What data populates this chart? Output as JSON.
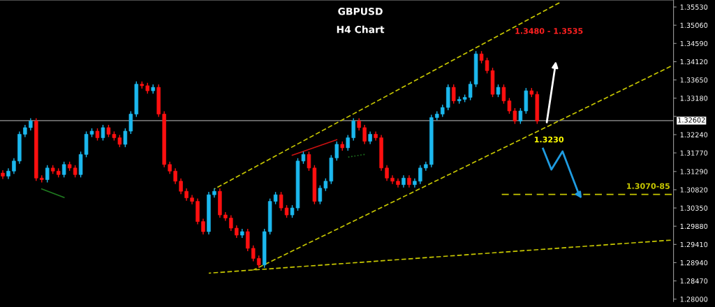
{
  "chart_data": {
    "type": "candlestick",
    "title": "GBPUSD",
    "subtitle": "H4 Chart",
    "categories": [
      null,
      null,
      null,
      null,
      null,
      null,
      null,
      null,
      null,
      null,
      null,
      null,
      null,
      null,
      null,
      null,
      null,
      null,
      null,
      null,
      null,
      null,
      null,
      null,
      null,
      null,
      null,
      null,
      null,
      null,
      null,
      null,
      null,
      null,
      null,
      null,
      null,
      null,
      null,
      null,
      null,
      null,
      null,
      null,
      null,
      null,
      null,
      null,
      null,
      null,
      null,
      null,
      null,
      null,
      null,
      null,
      null,
      null,
      null,
      null,
      null,
      null,
      null,
      null,
      null,
      null,
      null,
      null,
      null,
      null,
      null,
      null,
      null,
      null,
      null,
      null,
      null,
      null,
      null,
      null,
      null,
      null,
      null,
      null,
      null,
      null,
      null,
      null,
      null,
      null,
      null,
      null,
      null,
      null,
      null,
      null,
      null,
      null,
      null,
      null,
      null,
      null,
      null,
      null,
      null,
      null,
      null,
      null,
      null,
      null,
      null,
      null,
      null,
      null,
      null,
      null,
      null,
      null,
      null,
      null,
      null
    ],
    "ohlc": [
      [
        1.3125,
        1.3131,
        1.3111,
        1.3117
      ],
      [
        1.3117,
        1.3136,
        1.3111,
        1.313
      ],
      [
        1.313,
        1.3162,
        1.3124,
        1.3156
      ],
      [
        1.3156,
        1.3231,
        1.315,
        1.3225
      ],
      [
        1.3225,
        1.3248,
        1.3219,
        1.3242
      ],
      [
        1.3242,
        1.3265,
        1.3236,
        1.3259
      ],
      [
        1.3259,
        1.3265,
        1.3106,
        1.3112
      ],
      [
        1.3112,
        1.3118,
        1.3102,
        1.3108
      ],
      [
        1.3108,
        1.3144,
        1.3102,
        1.3138
      ],
      [
        1.3138,
        1.3144,
        1.3124,
        1.313
      ],
      [
        1.313,
        1.3136,
        1.3115,
        1.3121
      ],
      [
        1.3121,
        1.3153,
        1.3115,
        1.3147
      ],
      [
        1.3147,
        1.3153,
        1.3132,
        1.3138
      ],
      [
        1.3138,
        1.3144,
        1.3115,
        1.3121
      ],
      [
        1.3121,
        1.3179,
        1.3115,
        1.3173
      ],
      [
        1.3173,
        1.3231,
        1.3167,
        1.3225
      ],
      [
        1.3225,
        1.3239,
        1.3219,
        1.3233
      ],
      [
        1.3233,
        1.3239,
        1.321,
        1.3216
      ],
      [
        1.3216,
        1.3248,
        1.321,
        1.3242
      ],
      [
        1.3242,
        1.3248,
        1.3219,
        1.3225
      ],
      [
        1.3225,
        1.3231,
        1.321,
        1.3216
      ],
      [
        1.3216,
        1.3222,
        1.3193,
        1.3199
      ],
      [
        1.3199,
        1.3239,
        1.3193,
        1.3233
      ],
      [
        1.3233,
        1.3283,
        1.3227,
        1.3277
      ],
      [
        1.3277,
        1.336,
        1.3271,
        1.3354
      ],
      [
        1.3354,
        1.336,
        1.3344,
        1.335
      ],
      [
        1.335,
        1.3356,
        1.3331,
        1.3337
      ],
      [
        1.3337,
        1.3352,
        1.3331,
        1.3346
      ],
      [
        1.3346,
        1.3352,
        1.3271,
        1.3277
      ],
      [
        1.3277,
        1.3283,
        1.3141,
        1.3147
      ],
      [
        1.3147,
        1.3153,
        1.3124,
        1.313
      ],
      [
        1.313,
        1.3136,
        1.3098,
        1.3104
      ],
      [
        1.3104,
        1.311,
        1.3072,
        1.3078
      ],
      [
        1.3078,
        1.3084,
        1.3055,
        1.3061
      ],
      [
        1.3061,
        1.3067,
        1.3046,
        1.3052
      ],
      [
        1.3052,
        1.3058,
        1.2994,
        1.3
      ],
      [
        1.3,
        1.3006,
        1.2968,
        1.2974
      ],
      [
        1.2974,
        1.3075,
        1.2968,
        1.3069
      ],
      [
        1.3069,
        1.3084,
        1.3063,
        1.3078
      ],
      [
        1.3078,
        1.3084,
        1.3011,
        1.3017
      ],
      [
        1.3017,
        1.3023,
        1.3003,
        1.3009
      ],
      [
        1.3009,
        1.3015,
        1.2977,
        1.2983
      ],
      [
        1.2983,
        1.2989,
        1.2959,
        1.2965
      ],
      [
        1.2965,
        1.298,
        1.2959,
        1.2974
      ],
      [
        1.2974,
        1.298,
        1.2925,
        1.2931
      ],
      [
        1.2931,
        1.2937,
        1.2899,
        1.2905
      ],
      [
        1.2905,
        1.2911,
        1.2882,
        1.2888
      ],
      [
        1.2888,
        1.298,
        1.2882,
        1.2974
      ],
      [
        1.2974,
        1.3058,
        1.2968,
        1.3052
      ],
      [
        1.3052,
        1.3075,
        1.3046,
        1.3069
      ],
      [
        1.3069,
        1.3075,
        1.3029,
        1.3035
      ],
      [
        1.3035,
        1.3041,
        1.3011,
        1.3017
      ],
      [
        1.3017,
        1.3041,
        1.3011,
        1.3035
      ],
      [
        1.3035,
        1.3162,
        1.3029,
        1.3156
      ],
      [
        1.3156,
        1.3179,
        1.315,
        1.3173
      ],
      [
        1.3173,
        1.3179,
        1.3132,
        1.3138
      ],
      [
        1.3138,
        1.3144,
        1.3046,
        1.3052
      ],
      [
        1.3052,
        1.3092,
        1.3046,
        1.3086
      ],
      [
        1.3086,
        1.311,
        1.308,
        1.3104
      ],
      [
        1.3104,
        1.317,
        1.3098,
        1.3164
      ],
      [
        1.3164,
        1.3205,
        1.3158,
        1.3199
      ],
      [
        1.3199,
        1.3205,
        1.3184,
        1.319
      ],
      [
        1.319,
        1.3222,
        1.3184,
        1.3216
      ],
      [
        1.3216,
        1.3265,
        1.321,
        1.3259
      ],
      [
        1.3259,
        1.3265,
        1.3236,
        1.3242
      ],
      [
        1.3242,
        1.3248,
        1.3201,
        1.3207
      ],
      [
        1.3207,
        1.3231,
        1.3201,
        1.3225
      ],
      [
        1.3225,
        1.3231,
        1.321,
        1.3216
      ],
      [
        1.3216,
        1.3222,
        1.3132,
        1.3138
      ],
      [
        1.3138,
        1.3144,
        1.3106,
        1.3112
      ],
      [
        1.3112,
        1.3118,
        1.3098,
        1.3104
      ],
      [
        1.3104,
        1.311,
        1.3089,
        1.3095
      ],
      [
        1.3095,
        1.3118,
        1.3089,
        1.3112
      ],
      [
        1.3112,
        1.3118,
        1.3089,
        1.3095
      ],
      [
        1.3095,
        1.311,
        1.3089,
        1.3104
      ],
      [
        1.3104,
        1.3144,
        1.3098,
        1.3138
      ],
      [
        1.3138,
        1.3153,
        1.3132,
        1.3147
      ],
      [
        1.3147,
        1.3274,
        1.3141,
        1.3268
      ],
      [
        1.3268,
        1.3283,
        1.3262,
        1.3277
      ],
      [
        1.3277,
        1.33,
        1.3271,
        1.3294
      ],
      [
        1.3294,
        1.3352,
        1.3288,
        1.3346
      ],
      [
        1.3346,
        1.3352,
        1.3305,
        1.3311
      ],
      [
        1.3311,
        1.3321,
        1.3305,
        1.3315
      ],
      [
        1.3315,
        1.3326,
        1.3309,
        1.332
      ],
      [
        1.332,
        1.336,
        1.3314,
        1.3354
      ],
      [
        1.3354,
        1.3438,
        1.3348,
        1.3432
      ],
      [
        1.3432,
        1.3438,
        1.3409,
        1.3415
      ],
      [
        1.3415,
        1.3421,
        1.3383,
        1.3389
      ],
      [
        1.3389,
        1.3395,
        1.3322,
        1.3328
      ],
      [
        1.3328,
        1.3352,
        1.3322,
        1.3346
      ],
      [
        1.3346,
        1.3352,
        1.3305,
        1.3311
      ],
      [
        1.3311,
        1.3317,
        1.3279,
        1.3285
      ],
      [
        1.3285,
        1.3291,
        1.3253,
        1.3259
      ],
      [
        1.3259,
        1.3291,
        1.3253,
        1.3285
      ],
      [
        1.3285,
        1.3343,
        1.3279,
        1.3337
      ],
      [
        1.3337,
        1.3343,
        1.3322,
        1.3328
      ],
      [
        1.3328,
        1.3334,
        1.3253,
        1.3259
      ],
      null,
      null,
      null,
      null,
      null,
      null,
      null,
      null,
      null,
      null,
      null,
      null,
      null,
      null,
      null,
      null,
      null,
      null,
      null,
      null,
      null,
      null,
      null,
      null
    ],
    "series": [
      {
        "type": "line",
        "color": "#c8c800",
        "line_style": "dashed",
        "values": [
          null,
          null,
          null,
          null,
          null,
          null,
          null,
          null,
          null,
          null,
          null,
          null,
          null,
          null,
          null,
          null,
          null,
          null,
          null,
          null,
          null,
          null,
          null,
          null,
          null,
          null,
          null,
          null,
          null,
          null,
          null,
          null,
          null,
          null,
          null,
          null,
          null,
          null,
          1.3084,
          null,
          null,
          null,
          null,
          null,
          null,
          null,
          null,
          null,
          null,
          null,
          null,
          null,
          null,
          null,
          null,
          null,
          null,
          null,
          null,
          null,
          null,
          null,
          null,
          null,
          null,
          null,
          null,
          null,
          null,
          null,
          null,
          null,
          null,
          null,
          null,
          null,
          null,
          null,
          null,
          null,
          null,
          null,
          null,
          null,
          null,
          null,
          null,
          null,
          null,
          null,
          null,
          null,
          null,
          null,
          null,
          null,
          null,
          null,
          null,
          null,
          1.3564,
          null,
          null,
          null,
          null,
          null,
          null,
          null,
          null,
          null,
          null,
          null,
          null,
          null,
          null,
          null,
          null,
          null,
          null,
          null,
          null
        ]
      },
      {
        "type": "line",
        "color": "#c8c800",
        "line_style": "dashed",
        "values": [
          null,
          null,
          null,
          null,
          null,
          null,
          null,
          null,
          null,
          null,
          null,
          null,
          null,
          null,
          null,
          null,
          null,
          null,
          null,
          null,
          null,
          null,
          null,
          null,
          null,
          null,
          null,
          null,
          null,
          null,
          null,
          null,
          null,
          null,
          null,
          null,
          null,
          null,
          null,
          null,
          null,
          null,
          null,
          null,
          null,
          1.2875,
          null,
          null,
          null,
          null,
          null,
          null,
          null,
          null,
          null,
          null,
          null,
          null,
          null,
          null,
          null,
          null,
          null,
          null,
          null,
          null,
          null,
          null,
          null,
          null,
          null,
          null,
          null,
          null,
          null,
          null,
          null,
          null,
          null,
          null,
          null,
          null,
          null,
          null,
          null,
          null,
          null,
          null,
          null,
          null,
          null,
          null,
          null,
          null,
          null,
          null,
          null,
          null,
          null,
          null,
          null,
          null,
          null,
          null,
          null,
          null,
          null,
          null,
          null,
          null,
          null,
          null,
          null,
          null,
          null,
          null,
          null,
          null,
          null,
          null,
          1.34
        ]
      },
      {
        "type": "line",
        "color": "#c8c800",
        "line_style": "dashed",
        "values": [
          null,
          null,
          null,
          null,
          null,
          null,
          null,
          null,
          null,
          null,
          null,
          null,
          null,
          null,
          null,
          null,
          null,
          null,
          null,
          null,
          null,
          null,
          null,
          null,
          null,
          null,
          null,
          null,
          null,
          null,
          null,
          null,
          null,
          null,
          null,
          null,
          null,
          1.2867,
          null,
          null,
          null,
          null,
          null,
          null,
          null,
          null,
          null,
          null,
          null,
          null,
          null,
          null,
          null,
          null,
          null,
          null,
          null,
          null,
          null,
          null,
          null,
          null,
          null,
          null,
          null,
          null,
          null,
          null,
          null,
          null,
          null,
          null,
          null,
          null,
          null,
          null,
          null,
          null,
          null,
          null,
          null,
          null,
          null,
          null,
          null,
          null,
          null,
          null,
          null,
          null,
          null,
          null,
          null,
          null,
          null,
          null,
          null,
          null,
          null,
          null,
          null,
          null,
          null,
          null,
          null,
          null,
          null,
          null,
          null,
          null,
          null,
          null,
          null,
          null,
          null,
          null,
          null,
          null,
          null,
          null,
          1.2952
        ]
      },
      {
        "type": "line",
        "color": "#cc1111",
        "line_style": "solid",
        "values": [
          null,
          null,
          null,
          null,
          null,
          null,
          null,
          null,
          null,
          null,
          null,
          null,
          null,
          null,
          null,
          null,
          null,
          null,
          null,
          null,
          null,
          null,
          null,
          null,
          null,
          null,
          null,
          null,
          null,
          null,
          null,
          null,
          null,
          null,
          null,
          null,
          null,
          null,
          null,
          null,
          null,
          null,
          null,
          null,
          null,
          null,
          null,
          null,
          null,
          null,
          null,
          null,
          1.3171,
          null,
          null,
          null,
          null,
          null,
          null,
          null,
          1.3211,
          null,
          null,
          null,
          null,
          null,
          null,
          null,
          null,
          null,
          null,
          null,
          null,
          null,
          null,
          null,
          null,
          null,
          null,
          null,
          null,
          null,
          null,
          null,
          null,
          null,
          null,
          null,
          null,
          null,
          null,
          null,
          null,
          null,
          null,
          null,
          null,
          null,
          null,
          null,
          null,
          null,
          null,
          null,
          null,
          null,
          null,
          null,
          null,
          null,
          null,
          null,
          null,
          null,
          null,
          null,
          null,
          null,
          null,
          null,
          null
        ]
      },
      {
        "type": "line",
        "color": "#1f7a1f",
        "line_style": "solid",
        "values": [
          null,
          null,
          null,
          null,
          null,
          null,
          null,
          1.3084,
          null,
          null,
          null,
          1.3062,
          null,
          null,
          null,
          null,
          null,
          null,
          null,
          null,
          null,
          null,
          null,
          null,
          null,
          null,
          null,
          null,
          null,
          null,
          null,
          null,
          null,
          null,
          null,
          null,
          null,
          null,
          null,
          null,
          null,
          null,
          null,
          null,
          null,
          null,
          null,
          null,
          null,
          null,
          null,
          null,
          null,
          null,
          null,
          null,
          null,
          null,
          null,
          null,
          null,
          null,
          null,
          null,
          null,
          null,
          null,
          null,
          null,
          null,
          null,
          null,
          null,
          null,
          null,
          null,
          null,
          null,
          null,
          null,
          null,
          null,
          null,
          null,
          null,
          null,
          null,
          null,
          null,
          null,
          null,
          null,
          null,
          null,
          null,
          null,
          null,
          null,
          null,
          null,
          null,
          null,
          null,
          null,
          null,
          null,
          null,
          null,
          null,
          null,
          null,
          null,
          null,
          null,
          null,
          null,
          null,
          null,
          null,
          null,
          null
        ]
      },
      {
        "type": "line",
        "color": "#1f7a1f",
        "line_style": "dotted",
        "values": [
          null,
          null,
          null,
          null,
          null,
          null,
          null,
          null,
          null,
          null,
          null,
          null,
          null,
          null,
          null,
          null,
          null,
          null,
          null,
          null,
          null,
          null,
          null,
          null,
          null,
          null,
          null,
          null,
          null,
          null,
          null,
          null,
          null,
          null,
          null,
          null,
          null,
          null,
          null,
          null,
          null,
          null,
          null,
          null,
          null,
          null,
          null,
          null,
          null,
          null,
          null,
          null,
          null,
          null,
          null,
          null,
          null,
          null,
          null,
          null,
          null,
          null,
          1.3166,
          null,
          null,
          1.3173,
          null,
          null,
          null,
          null,
          null,
          null,
          null,
          null,
          null,
          null,
          null,
          null,
          null,
          null,
          null,
          null,
          null,
          null,
          null,
          null,
          null,
          null,
          null,
          null,
          null,
          null,
          null,
          null,
          null,
          null,
          null,
          null,
          null,
          null,
          null,
          null,
          null,
          null,
          null,
          null,
          null,
          null,
          null,
          null,
          null,
          null,
          null,
          null,
          null,
          null,
          null,
          null,
          null,
          null,
          null
        ]
      }
    ],
    "ylim": [
      1.2794,
      1.3571
    ],
    "yticks": [
      {
        "value": 1.3553,
        "label": "1.35530"
      },
      {
        "value": 1.3506,
        "label": "1.35060"
      },
      {
        "value": 1.3459,
        "label": "1.34590"
      },
      {
        "value": 1.3412,
        "label": "1.34120"
      },
      {
        "value": 1.3365,
        "label": "1.33650"
      },
      {
        "value": 1.3318,
        "label": "1.33180"
      },
      {
        "value": 1.3271,
        "label": null
      },
      {
        "value": 1.3224,
        "label": "1.32240"
      },
      {
        "value": 1.3177,
        "label": "1.31770"
      },
      {
        "value": 1.3129,
        "label": "1.31290"
      },
      {
        "value": 1.3082,
        "label": "1.30820"
      },
      {
        "value": 1.3035,
        "label": "1.30350"
      },
      {
        "value": 1.2988,
        "label": "1.29880"
      },
      {
        "value": 1.2941,
        "label": "1.29410"
      },
      {
        "value": 1.2894,
        "label": "1.28940"
      },
      {
        "value": 1.2847,
        "label": "1.28470"
      },
      {
        "value": 1.28,
        "label": "1.28000"
      }
    ],
    "tick_labels": "y",
    "ref_lines": [
      {
        "axis": "y",
        "value": 1.32602,
        "label": "1.32602",
        "color": "#9a9a9a"
      },
      {
        "axis": "y",
        "value": 1.307,
        "label": "1.3070-85",
        "color": "#c8c800",
        "line_style": "dashed"
      }
    ],
    "annotations": [
      "1.3480 - 1.3535",
      "1.3230"
    ],
    "grid": false
  }
}
